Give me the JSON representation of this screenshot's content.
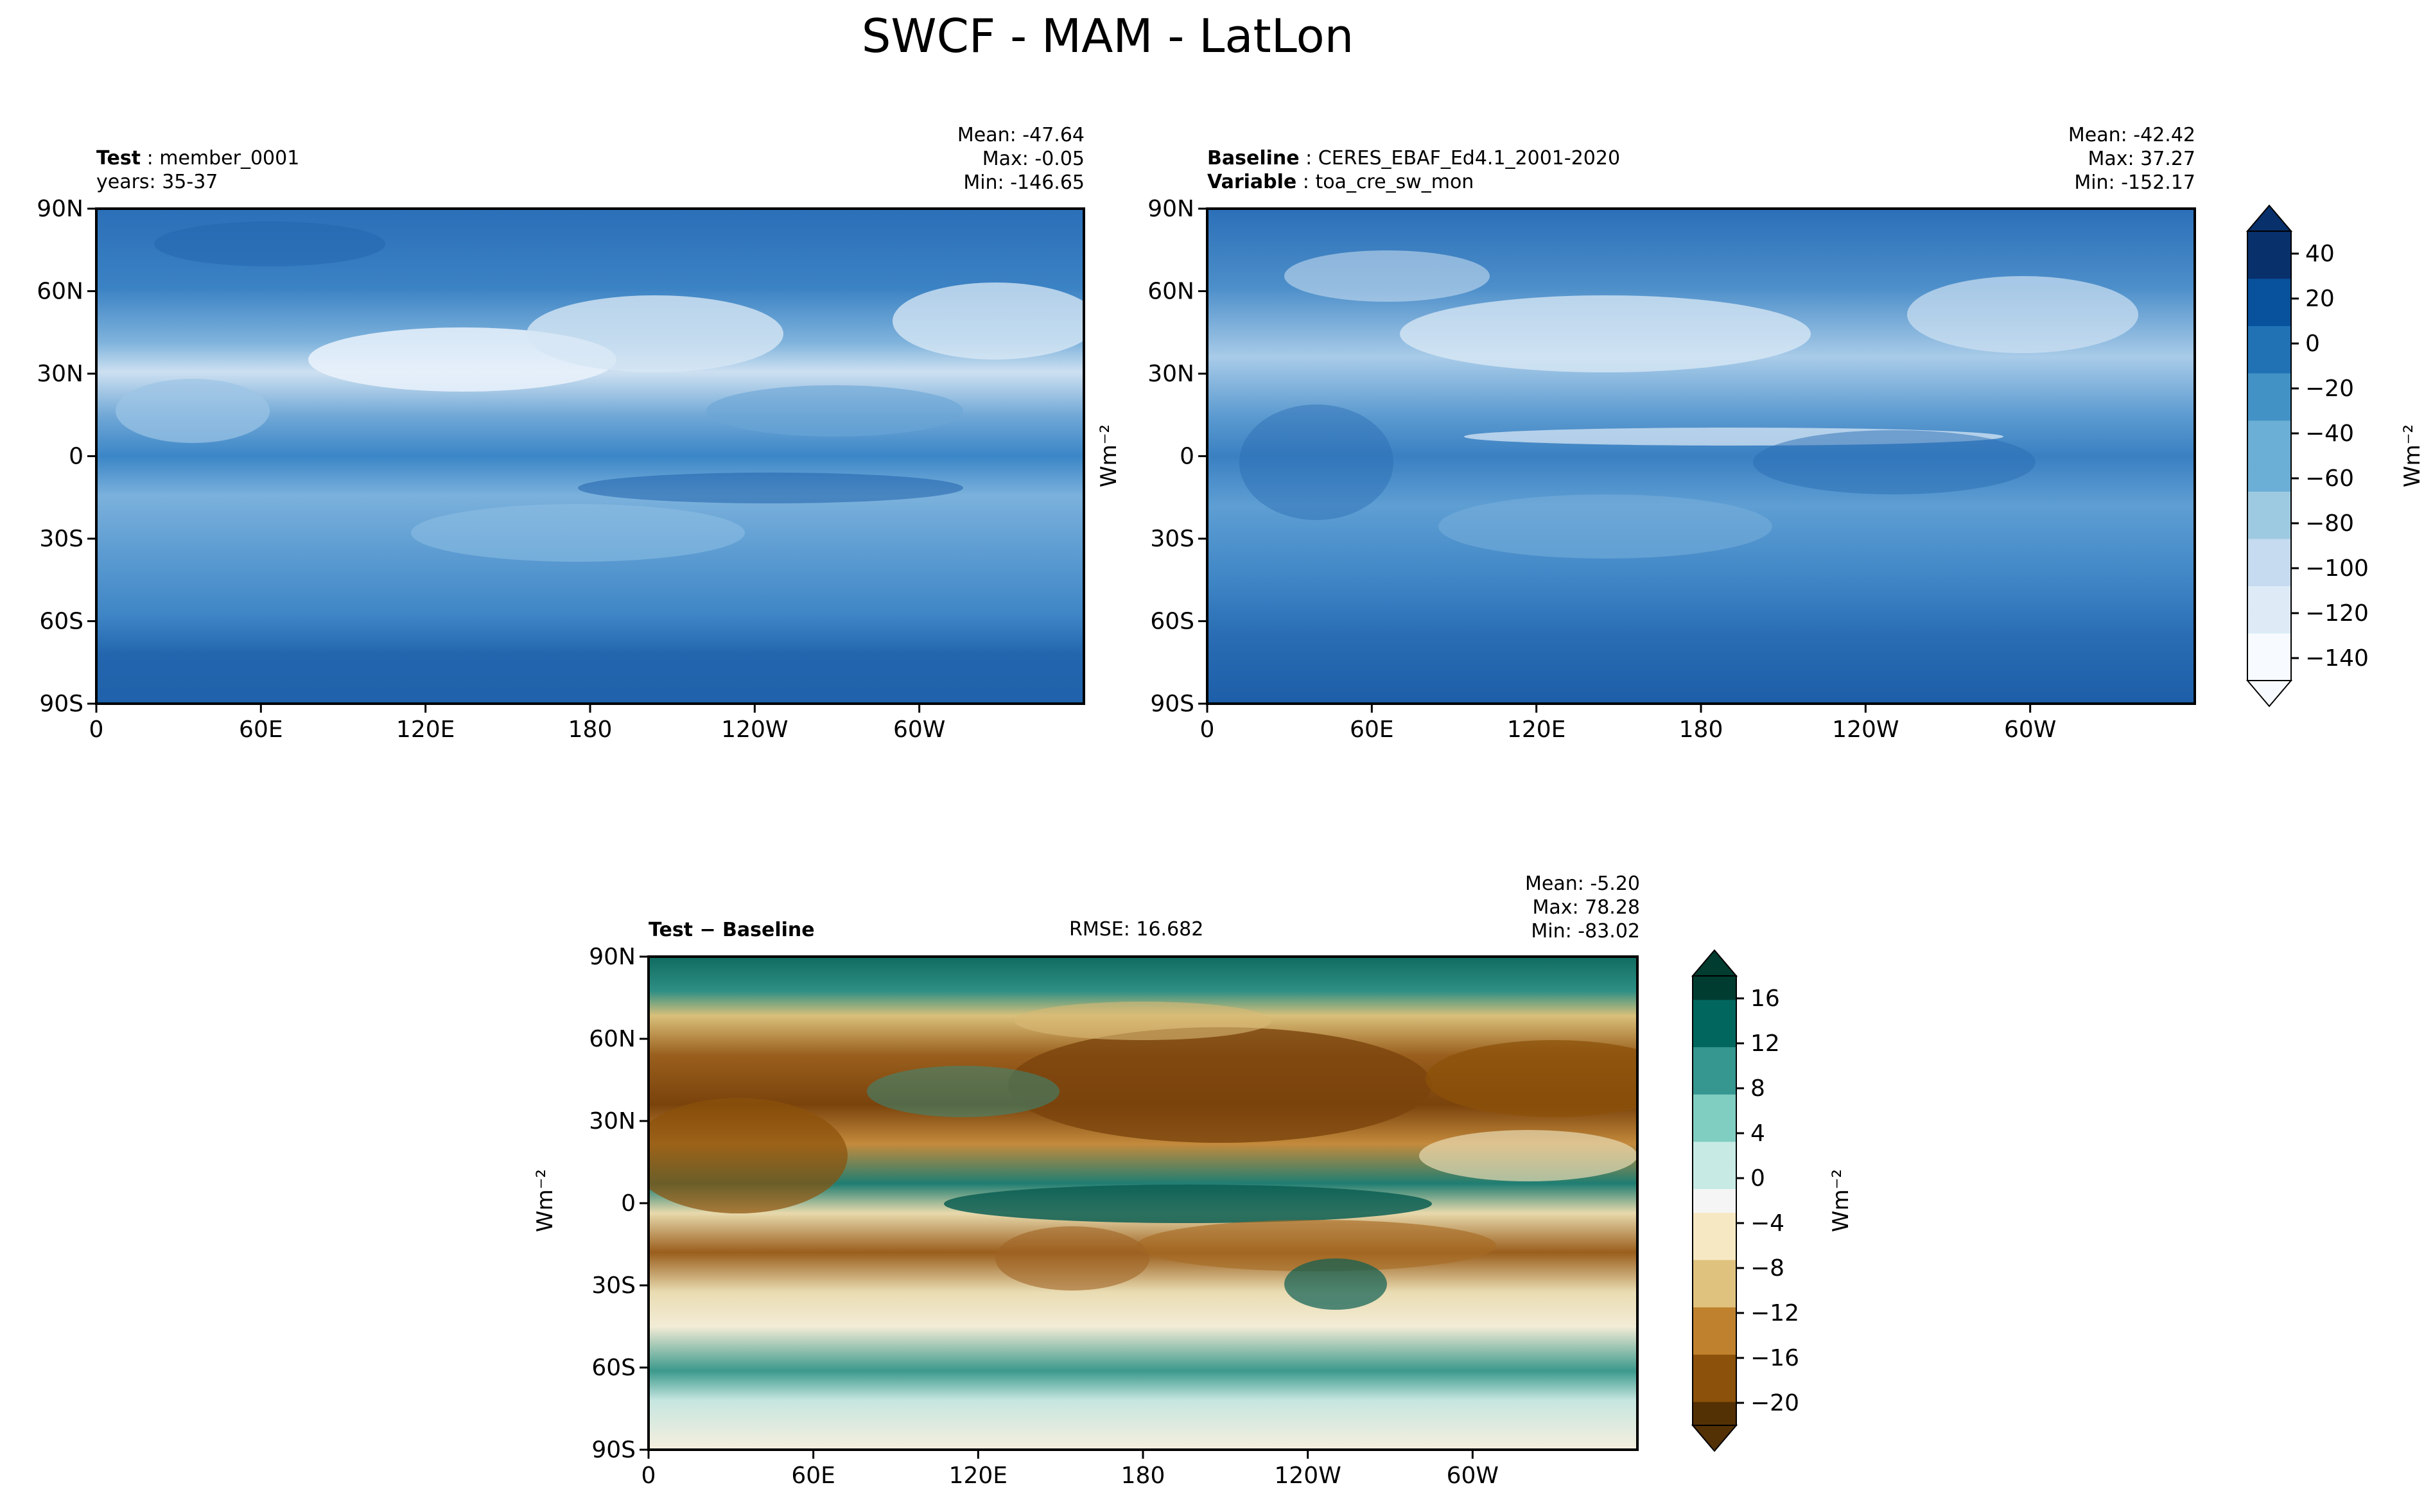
{
  "figure_title": "SWCF - MAM - LatLon",
  "chart_data": [
    {
      "type": "heatmap",
      "panel": "test",
      "label_key": "Test",
      "label_value": "member_0001",
      "sub_label": "years: 35-37",
      "stats": {
        "mean": "Mean: -47.64",
        "max": "Max: -0.05",
        "min": "Min: -146.65"
      },
      "xticks": [
        "0",
        "60E",
        "120E",
        "180",
        "120W",
        "60W"
      ],
      "yticks": [
        "90N",
        "60N",
        "30N",
        "0",
        "30S",
        "60S",
        "90S"
      ],
      "xlim": [
        0,
        360
      ],
      "ylim": [
        -90,
        90
      ],
      "colormap": "Blues"
    },
    {
      "type": "heatmap",
      "panel": "baseline",
      "label_key": "Baseline",
      "label_value": "CERES_EBAF_Ed4.1_2001-2020",
      "label2_key": "Variable",
      "label2_value": "toa_cre_sw_mon",
      "stats": {
        "mean": "Mean: -42.42",
        "max": "Max: 37.27",
        "min": "Min: -152.17"
      },
      "xticks": [
        "0",
        "60E",
        "120E",
        "180",
        "120W",
        "60W"
      ],
      "yticks": [
        "90N",
        "60N",
        "30N",
        "0",
        "30S",
        "60S",
        "90S"
      ],
      "colorbar": {
        "ticks": [
          "40",
          "20",
          "0",
          "−20",
          "−40",
          "−60",
          "−80",
          "−100",
          "−120",
          "−140"
        ],
        "unit": "Wm⁻²",
        "range": [
          -150,
          40
        ]
      },
      "colormap": "Blues"
    },
    {
      "type": "heatmap",
      "panel": "difference",
      "label_key": "Test − Baseline",
      "rmse": "RMSE: 16.682",
      "stats": {
        "mean": "Mean: -5.20",
        "max": "Max: 78.28",
        "min": "Min: -83.02"
      },
      "xticks": [
        "0",
        "60E",
        "120E",
        "180",
        "120W",
        "60W"
      ],
      "yticks": [
        "90N",
        "60N",
        "30N",
        "0",
        "30S",
        "60S",
        "90S"
      ],
      "colorbar": {
        "ticks": [
          "16",
          "12",
          "8",
          "4",
          "0",
          "−4",
          "−8",
          "−12",
          "−16",
          "−20"
        ],
        "unit": "Wm⁻²",
        "range": [
          -20,
          18
        ]
      },
      "colormap": "BrBG",
      "ylabel": "Wm⁻²"
    }
  ],
  "colors": {
    "blues": [
      "#f7fbff",
      "#deebf7",
      "#c6dbef",
      "#9ecae1",
      "#6baed6",
      "#4292c6",
      "#2171b5",
      "#08519c",
      "#08306b"
    ],
    "brbg_neg": [
      "#543005",
      "#8c510a",
      "#bf812d",
      "#dfc27d",
      "#f6e8c3"
    ],
    "brbg_pos": [
      "#c7eae5",
      "#80cdc1",
      "#35978f",
      "#01665e",
      "#003c30"
    ]
  }
}
